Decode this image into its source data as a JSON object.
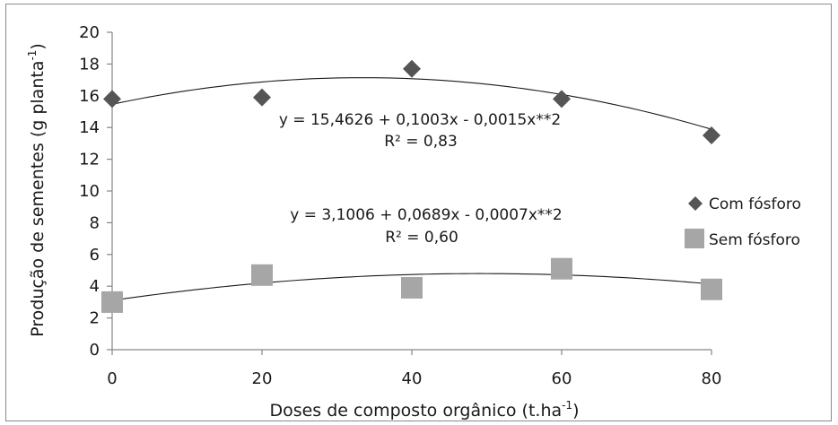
{
  "chart_data": {
    "type": "scatter",
    "xlabel": "Doses de composto orgânico (t.ha",
    "xlabel_sup": "-1",
    "xlabel_end": ")",
    "ylabel": "Produção de sementes  (g  planta",
    "ylabel_sup": "-1",
    "ylabel_end": ")",
    "xlim": [
      0,
      80
    ],
    "ylim": [
      0,
      20
    ],
    "x_ticks": [
      "0",
      "20",
      "40",
      "60",
      "80"
    ],
    "y_ticks": [
      "0",
      "2",
      "4",
      "6",
      "8",
      "10",
      "12",
      "14",
      "16",
      "18",
      "20"
    ],
    "grid": false,
    "legend_position": "right",
    "series": [
      {
        "name": "Com fósforo",
        "marker": "diamond",
        "color": "#555555",
        "x": [
          0,
          20,
          40,
          60,
          80
        ],
        "y": [
          15.8,
          15.9,
          17.7,
          15.8,
          13.5
        ],
        "trend": {
          "a": 15.4626,
          "b": 0.1003,
          "c": -0.0015
        },
        "equation": "y = 15,4626 + 0,1003x  - 0,0015x**2",
        "r2": "R² = 0,83"
      },
      {
        "name": "Sem fósforo",
        "marker": "square",
        "color": "#a6a6a6",
        "x": [
          0,
          20,
          40,
          60,
          80
        ],
        "y": [
          3.0,
          4.7,
          3.9,
          5.1,
          3.8
        ],
        "trend": {
          "a": 3.1006,
          "b": 0.0689,
          "c": -0.0007
        },
        "equation": "y = 3,1006  + 0,0689x  - 0,0007x**2",
        "r2": "R² = 0,60"
      }
    ]
  }
}
